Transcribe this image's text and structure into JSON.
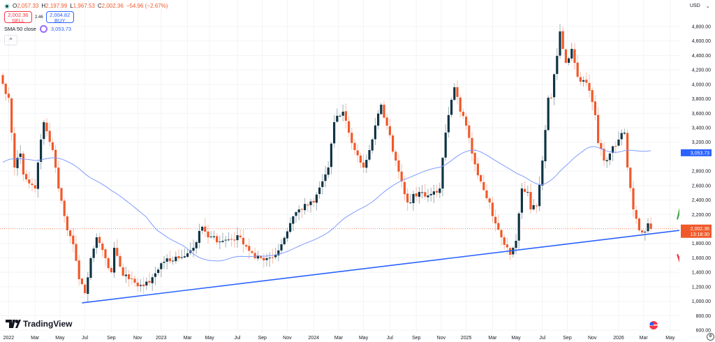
{
  "legend": {
    "open_label": "O",
    "open": "2,057.33",
    "high_label": "H",
    "high": "2,197.99",
    "low_label": "L",
    "low": "1,967.53",
    "close_label": "C",
    "close": "2,002.36",
    "change": "−54.96 (−2.67%)",
    "sell_price": "2,002.36",
    "sell_label": "SELL",
    "spread": "2.46",
    "buy_price": "2,004.82",
    "buy_label": "BUY",
    "indicator_label": "SMA 50 close",
    "indicator_value": "3,053.73",
    "collapse_icon": "chevron-up-icon"
  },
  "currency": "USD",
  "logo": "TradingView",
  "colors": {
    "up": "#0f3445",
    "down": "#f0592a",
    "sma": "#7f9cff",
    "trendline": "#2962ff",
    "arrow_up": "#43a447",
    "arrow_down": "#f23645",
    "last_price": "#f0592a",
    "sma_label": "#2962ff"
  },
  "chart_data": {
    "type": "candlestick",
    "interval": "weekly",
    "ylim": [
      600,
      4800
    ],
    "y_ticks": [
      4800,
      4600,
      4400,
      4200,
      4000,
      3800,
      3600,
      3400,
      3200,
      2800,
      2600,
      2400,
      2200,
      1800,
      1600,
      1400,
      1200,
      1000,
      800,
      600
    ],
    "y_tick_labels": [
      "4,800.00",
      "4,600.00",
      "4,400.00",
      "4,200.00",
      "4,000.00",
      "3,800.00",
      "3,600.00",
      "3,400.00",
      "3,200.00",
      "2,800.00",
      "2,600.00",
      "2,400.00",
      "2,200.00",
      "1,800.00",
      "1,600.00",
      "1,400.00",
      "1,200.00",
      "1,000.00",
      "800.00",
      "600.00"
    ],
    "x_ticks": [
      {
        "week": 2,
        "label": "2022"
      },
      {
        "week": 11,
        "label": "Mar"
      },
      {
        "week": 19.5,
        "label": "May"
      },
      {
        "week": 28,
        "label": "Jul"
      },
      {
        "week": 37,
        "label": "Sep"
      },
      {
        "week": 46,
        "label": "Nov"
      },
      {
        "week": 54,
        "label": "2023"
      },
      {
        "week": 63,
        "label": "Mar"
      },
      {
        "week": 70.5,
        "label": "May"
      },
      {
        "week": 80,
        "label": "Jul"
      },
      {
        "week": 88.5,
        "label": "Sep"
      },
      {
        "week": 97,
        "label": "Nov"
      },
      {
        "week": 106,
        "label": "2024"
      },
      {
        "week": 114.5,
        "label": "Mar"
      },
      {
        "week": 123,
        "label": "May"
      },
      {
        "week": 132,
        "label": "Jul"
      },
      {
        "week": 141,
        "label": "Sep"
      },
      {
        "week": 149.5,
        "label": "Nov"
      },
      {
        "week": 158,
        "label": "2025"
      },
      {
        "week": 167,
        "label": "Mar"
      },
      {
        "week": 175,
        "label": "May"
      },
      {
        "week": 184,
        "label": "Jul"
      },
      {
        "week": 192.5,
        "label": "Sep"
      },
      {
        "week": 201,
        "label": "Nov"
      },
      {
        "week": 210,
        "label": "2026"
      },
      {
        "week": 218.5,
        "label": "Mar"
      },
      {
        "week": 227.6,
        "label": "May"
      }
    ],
    "close_keypoints": [
      [
        0,
        4008
      ],
      [
        2,
        3815
      ],
      [
        3,
        3332
      ],
      [
        4,
        2850
      ],
      [
        6,
        3043
      ],
      [
        7,
        2753
      ],
      [
        10,
        2608
      ],
      [
        11,
        2560
      ],
      [
        13,
        3236
      ],
      [
        14,
        3477
      ],
      [
        17,
        3091
      ],
      [
        19,
        2560
      ],
      [
        22,
        1981
      ],
      [
        24,
        1788
      ],
      [
        26,
        1305
      ],
      [
        28,
        1112
      ],
      [
        30,
        1595
      ],
      [
        32,
        1884
      ],
      [
        35,
        1595
      ],
      [
        37,
        1401
      ],
      [
        38,
        1739
      ],
      [
        41,
        1353
      ],
      [
        43,
        1305
      ],
      [
        45,
        1257
      ],
      [
        48,
        1208
      ],
      [
        50,
        1257
      ],
      [
        55,
        1546
      ],
      [
        60,
        1595
      ],
      [
        65,
        1739
      ],
      [
        68,
        2029
      ],
      [
        70,
        1884
      ],
      [
        75,
        1836
      ],
      [
        81,
        1884
      ],
      [
        86,
        1595
      ],
      [
        90,
        1595
      ],
      [
        93,
        1643
      ],
      [
        95,
        1788
      ],
      [
        99,
        2174
      ],
      [
        101,
        2270
      ],
      [
        106,
        2367
      ],
      [
        111,
        2850
      ],
      [
        113,
        3477
      ],
      [
        116,
        3622
      ],
      [
        118,
        3332
      ],
      [
        120,
        3091
      ],
      [
        123,
        2850
      ],
      [
        125,
        3091
      ],
      [
        129,
        3719
      ],
      [
        131,
        3429
      ],
      [
        134,
        2946
      ],
      [
        136,
        2657
      ],
      [
        138,
        2367
      ],
      [
        142,
        2512
      ],
      [
        145,
        2463
      ],
      [
        149,
        2560
      ],
      [
        151,
        3332
      ],
      [
        154,
        3960
      ],
      [
        156,
        3622
      ],
      [
        158,
        3429
      ],
      [
        160,
        3043
      ],
      [
        163,
        2657
      ],
      [
        166,
        2367
      ],
      [
        168,
        2077
      ],
      [
        170,
        1884
      ],
      [
        173,
        1643
      ],
      [
        175,
        1836
      ],
      [
        177,
        2560
      ],
      [
        179,
        2512
      ],
      [
        180,
        2270
      ],
      [
        182,
        2319
      ],
      [
        184,
        2946
      ],
      [
        186,
        3815
      ],
      [
        187,
        3815
      ],
      [
        189,
        4394
      ],
      [
        190,
        4732
      ],
      [
        191,
        4491
      ],
      [
        192,
        4298
      ],
      [
        194,
        4491
      ],
      [
        196,
        4105
      ],
      [
        198,
        4057
      ],
      [
        200,
        3912
      ],
      [
        202,
        3574
      ],
      [
        203,
        3188
      ],
      [
        205,
        2946
      ],
      [
        207,
        3043
      ],
      [
        210,
        3236
      ],
      [
        212,
        3332
      ],
      [
        213,
        2850
      ],
      [
        215,
        2270
      ],
      [
        217,
        1981
      ],
      [
        219,
        1961
      ],
      [
        220,
        2077
      ],
      [
        221,
        2002.36
      ]
    ],
    "sma_period": 50,
    "sma_last": "3,053.73",
    "last_price": "2,002.36",
    "last_price_countdown": "13:18:30",
    "trendline": [
      [
        27,
        977
      ],
      [
        231,
        1981
      ]
    ],
    "arrows": [
      {
        "direction": "up",
        "from": [
          230,
          2130
        ],
        "to": [
          234,
          2740
        ]
      },
      {
        "direction": "down",
        "from": [
          230,
          1650
        ],
        "to": [
          233,
          1360
        ]
      }
    ]
  }
}
